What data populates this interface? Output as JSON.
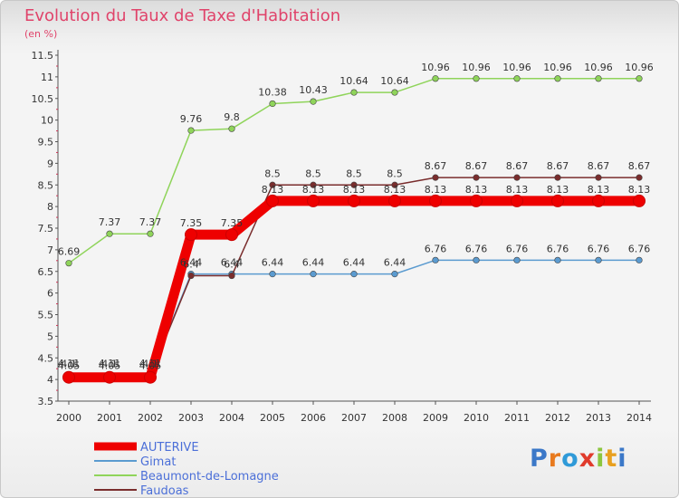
{
  "chart_data": {
    "type": "line",
    "title": "Evolution du Taux de Taxe d'Habitation",
    "ylabel": "(en %)",
    "x": [
      "2000",
      "2001",
      "2002",
      "2003",
      "2004",
      "2005",
      "2006",
      "2007",
      "2008",
      "2009",
      "2010",
      "2011",
      "2012",
      "2013",
      "2014"
    ],
    "ylim": [
      3.5,
      11.5
    ],
    "yticks": [
      "3.5",
      "4",
      "4.5",
      "5",
      "5.5",
      "6",
      "6.5",
      "7",
      "7.5",
      "8",
      "8.5",
      "9",
      "9.5",
      "10",
      "10.5",
      "11",
      "11.5"
    ],
    "grid": false,
    "legend_position": "bottom-left",
    "series": [
      {
        "name": "AUTERIVE",
        "color": "#ee0000",
        "values": [
          4.05,
          4.05,
          4.05,
          7.35,
          7.35,
          8.13,
          8.13,
          8.13,
          8.13,
          8.13,
          8.13,
          8.13,
          8.13,
          8.13,
          8.13
        ],
        "labels": [
          "4.05",
          "4.05",
          "4.05",
          "7.35",
          "7.35",
          "8.13",
          "8.13",
          "8.13",
          "8.13",
          "8.13",
          "8.13",
          "8.13",
          "8.13",
          "8.13",
          "8.13"
        ]
      },
      {
        "name": "Gimat",
        "color": "#5b9bd0",
        "values": [
          4.11,
          4.11,
          4.11,
          6.44,
          6.44,
          6.44,
          6.44,
          6.44,
          6.44,
          6.76,
          6.76,
          6.76,
          6.76,
          6.76,
          6.76
        ],
        "labels": [
          "4.11",
          "4.11",
          "4.11",
          "6.44",
          "6.44",
          "6.44",
          "6.44",
          "6.44",
          "6.44",
          "6.76",
          "6.76",
          "6.76",
          "6.76",
          "6.76",
          "6.76"
        ]
      },
      {
        "name": "Beaumont-de-Lomagne",
        "color": "#8fd45a",
        "values": [
          6.69,
          7.37,
          7.37,
          9.76,
          9.8,
          10.38,
          10.43,
          10.64,
          10.64,
          10.96,
          10.96,
          10.96,
          10.96,
          10.96,
          10.96
        ],
        "labels": [
          "6.69",
          "7.37",
          "7.37",
          "9.76",
          "9.8",
          "10.38",
          "10.43",
          "10.64",
          "10.64",
          "10.96",
          "10.96",
          "10.96",
          "10.96",
          "10.96",
          "10.96"
        ]
      },
      {
        "name": "Faudoas",
        "color": "#7a2d2d",
        "values": [
          4.1,
          4.1,
          4.1,
          6.4,
          6.4,
          8.5,
          8.5,
          8.5,
          8.5,
          8.67,
          8.67,
          8.67,
          8.67,
          8.67,
          8.67
        ],
        "labels": [
          "4.1",
          "4.1",
          "4.1",
          "6.4",
          "6.4",
          "8.5",
          "8.5",
          "8.5",
          "8.5",
          "8.67",
          "8.67",
          "8.67",
          "8.67",
          "8.67",
          "8.67"
        ]
      }
    ]
  },
  "logo": {
    "text": "Proxiti",
    "colors": [
      "#3b78c8",
      "#e87a1e",
      "#2f9ad8",
      "#e03b2c",
      "#8cc63f",
      "#e8a020",
      "#3b78c8"
    ]
  }
}
